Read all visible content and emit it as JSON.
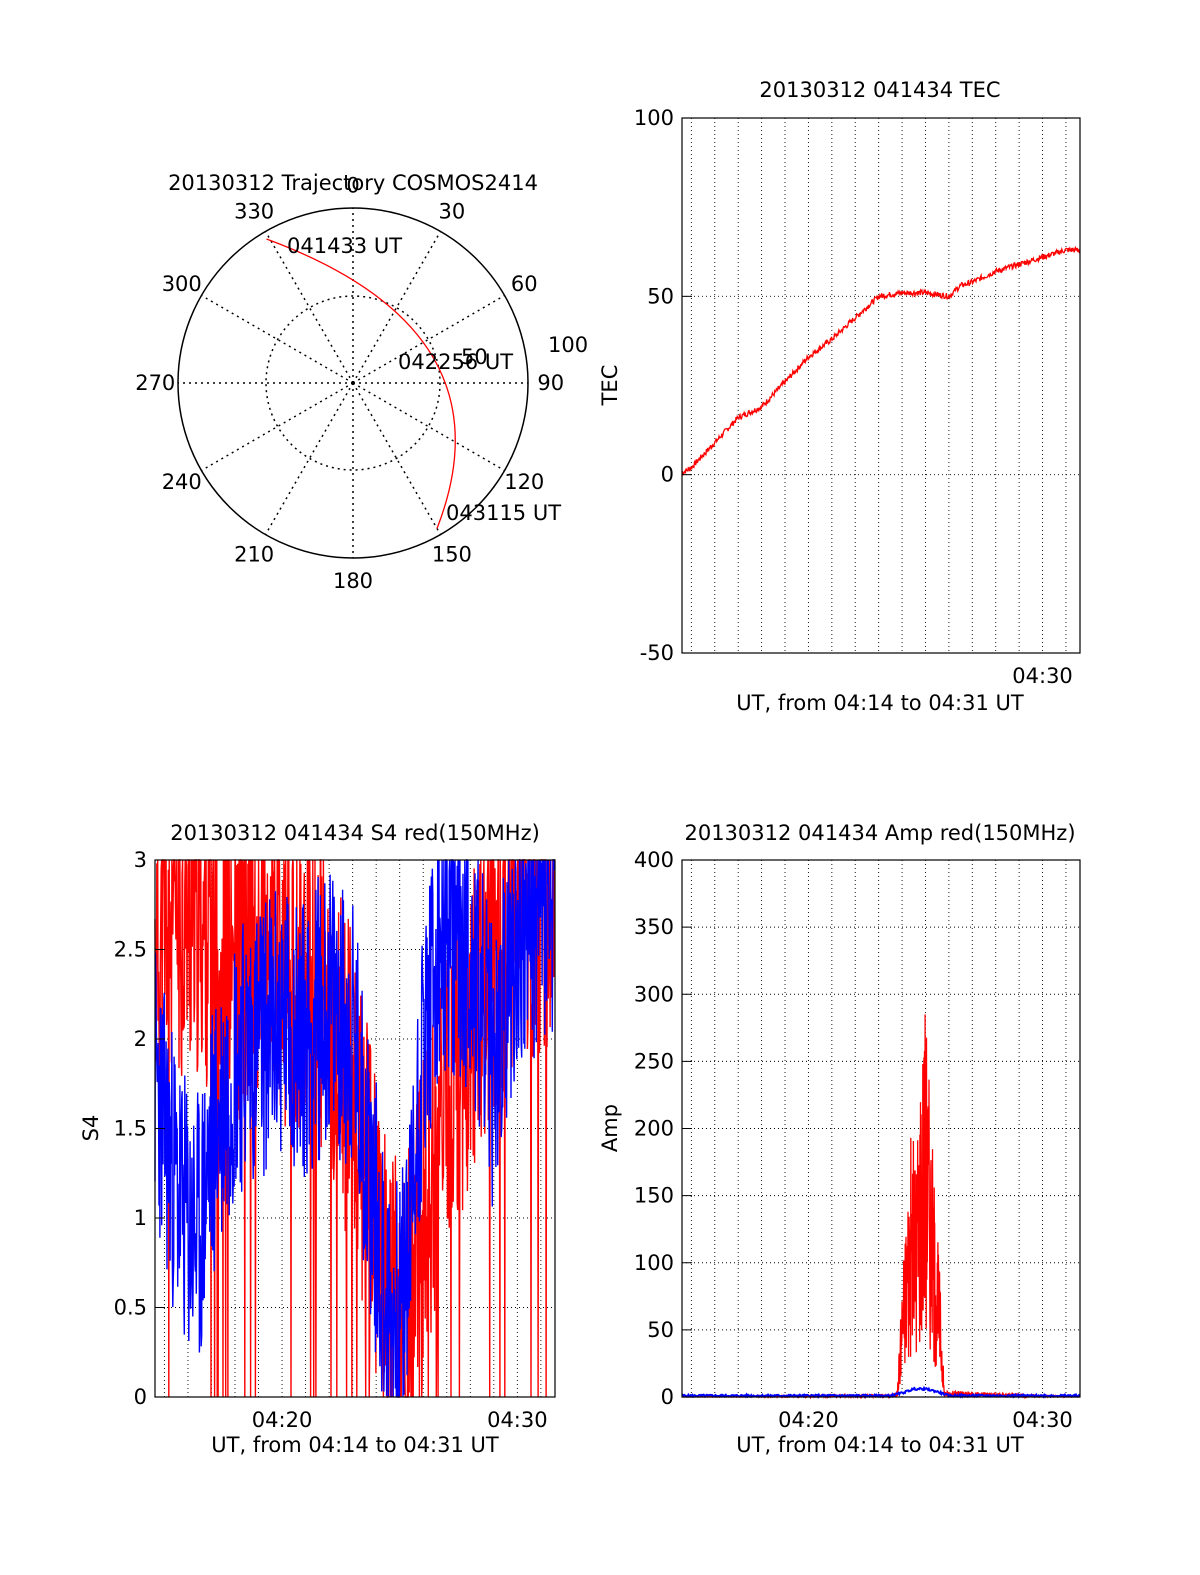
{
  "figure": {
    "colors": {
      "red": "#ff0000",
      "blue": "#0000ff",
      "axis": "#000000",
      "grid": "#000000"
    }
  },
  "chart_data": [
    {
      "id": "trajectory",
      "type": "polar",
      "title": "20130312 Trajectory COSMOS2414",
      "azimuth_labels": [
        "0",
        "30",
        "60",
        "90",
        "120",
        "150",
        "180",
        "210",
        "240",
        "270",
        "300",
        "330"
      ],
      "elevation_ring_labels": [
        "50",
        "100"
      ],
      "track": {
        "start_label": "041433 UT",
        "start": {
          "azimuth": 329,
          "zenith": 96
        },
        "mid_label": "042256 UT",
        "mid": {
          "azimuth": 72,
          "zenith": 48
        },
        "end_label": "043115 UT",
        "end": {
          "azimuth": 150,
          "zenith": 96
        },
        "color": "#ff0000"
      }
    },
    {
      "id": "tec",
      "type": "line",
      "title": "20130312 041434 TEC",
      "ylabel": "TEC",
      "xlabel": "UT, from 04:14 to 04:31 UT",
      "x_range_min": [
        254.6,
        271.6
      ],
      "ylim": [
        -50,
        100
      ],
      "yticks": [
        "-50",
        "0",
        "50",
        "100"
      ],
      "xtick_labels": [
        {
          "t": 270,
          "label": "04:30"
        }
      ],
      "series": [
        {
          "name": "TEC",
          "color": "#ff0000",
          "x": [
            254.6,
            255,
            256,
            257,
            258,
            259,
            260,
            261,
            262,
            263,
            264,
            265,
            266,
            266.5,
            267,
            268,
            269,
            270,
            271,
            271.6
          ],
          "y": [
            0.5,
            2,
            9,
            16,
            19,
            26,
            33,
            38,
            44,
            50,
            51,
            51,
            50,
            53,
            54,
            57,
            59,
            61,
            63,
            63
          ]
        }
      ]
    },
    {
      "id": "s4",
      "type": "line",
      "title": "20130312 041434 S4 red(150MHz)",
      "ylabel": "S4",
      "xlabel": "UT, from 04:14 to 04:31 UT",
      "x_range_min": [
        254.6,
        271.6
      ],
      "ylim": [
        0,
        3
      ],
      "yticks": [
        "0",
        "0.5",
        "1",
        "1.5",
        "2",
        "2.5",
        "3"
      ],
      "xtick_labels": [
        {
          "t": 260,
          "label": "04:20"
        },
        {
          "t": 270,
          "label": "04:30"
        }
      ],
      "series": [
        {
          "name": "red (150MHz)",
          "color": "#ff0000",
          "x": [
            254.6,
            255,
            256,
            257,
            258,
            259,
            260,
            261,
            262,
            263,
            263.5,
            264,
            264.5,
            265,
            265.3,
            266,
            267,
            268,
            269,
            270,
            271,
            271.6
          ],
          "y": [
            2.4,
            2.6,
            2.7,
            2.6,
            2.4,
            2.5,
            2.4,
            2.4,
            2.1,
            1.7,
            1.3,
            0.9,
            0.55,
            0.4,
            0.5,
            1.0,
            1.6,
            2.1,
            2.5,
            2.7,
            2.8,
            2.7
          ]
        },
        {
          "name": "blue",
          "color": "#0000ff",
          "x": [
            254.6,
            255,
            255.5,
            256,
            256.5,
            257,
            258,
            259,
            260,
            261,
            262,
            263,
            263.5,
            264,
            264.5,
            265,
            265.5,
            266,
            267,
            268,
            269,
            270,
            271,
            271.6
          ],
          "y": [
            1.8,
            1.5,
            1.2,
            0.95,
            0.9,
            1.4,
            1.9,
            2.0,
            2.1,
            2.0,
            2.2,
            2.0,
            1.5,
            1.0,
            0.5,
            0.4,
            1.0,
            2.0,
            2.6,
            2.5,
            1.8,
            2.6,
            2.7,
            2.6
          ]
        }
      ]
    },
    {
      "id": "amp",
      "type": "line",
      "title": "20130312 041434 Amp red(150MHz)",
      "ylabel": "Amp",
      "xlabel": "UT, from 04:14 to 04:31 UT",
      "x_range_min": [
        254.6,
        271.6
      ],
      "ylim": [
        0,
        400
      ],
      "yticks": [
        "0",
        "50",
        "100",
        "150",
        "200",
        "250",
        "300",
        "350",
        "400"
      ],
      "xtick_labels": [
        {
          "t": 260,
          "label": "04:20"
        },
        {
          "t": 270,
          "label": "04:30"
        }
      ],
      "series": [
        {
          "name": "red (150MHz)",
          "color": "#ff0000",
          "x": [
            254.6,
            263.6,
            263.8,
            264.0,
            264.2,
            264.4,
            264.6,
            264.8,
            265.0,
            265.2,
            265.4,
            265.6,
            265.8,
            271.6
          ],
          "y": [
            0,
            2,
            5,
            90,
            150,
            200,
            190,
            260,
            310,
            230,
            150,
            100,
            5,
            0
          ]
        },
        {
          "name": "blue",
          "color": "#0000ff",
          "x": [
            254.6,
            263.5,
            264.0,
            264.5,
            265.0,
            265.5,
            266.0,
            271.6
          ],
          "y": [
            1,
            1,
            3,
            6,
            6,
            4,
            1,
            1
          ]
        }
      ]
    }
  ]
}
